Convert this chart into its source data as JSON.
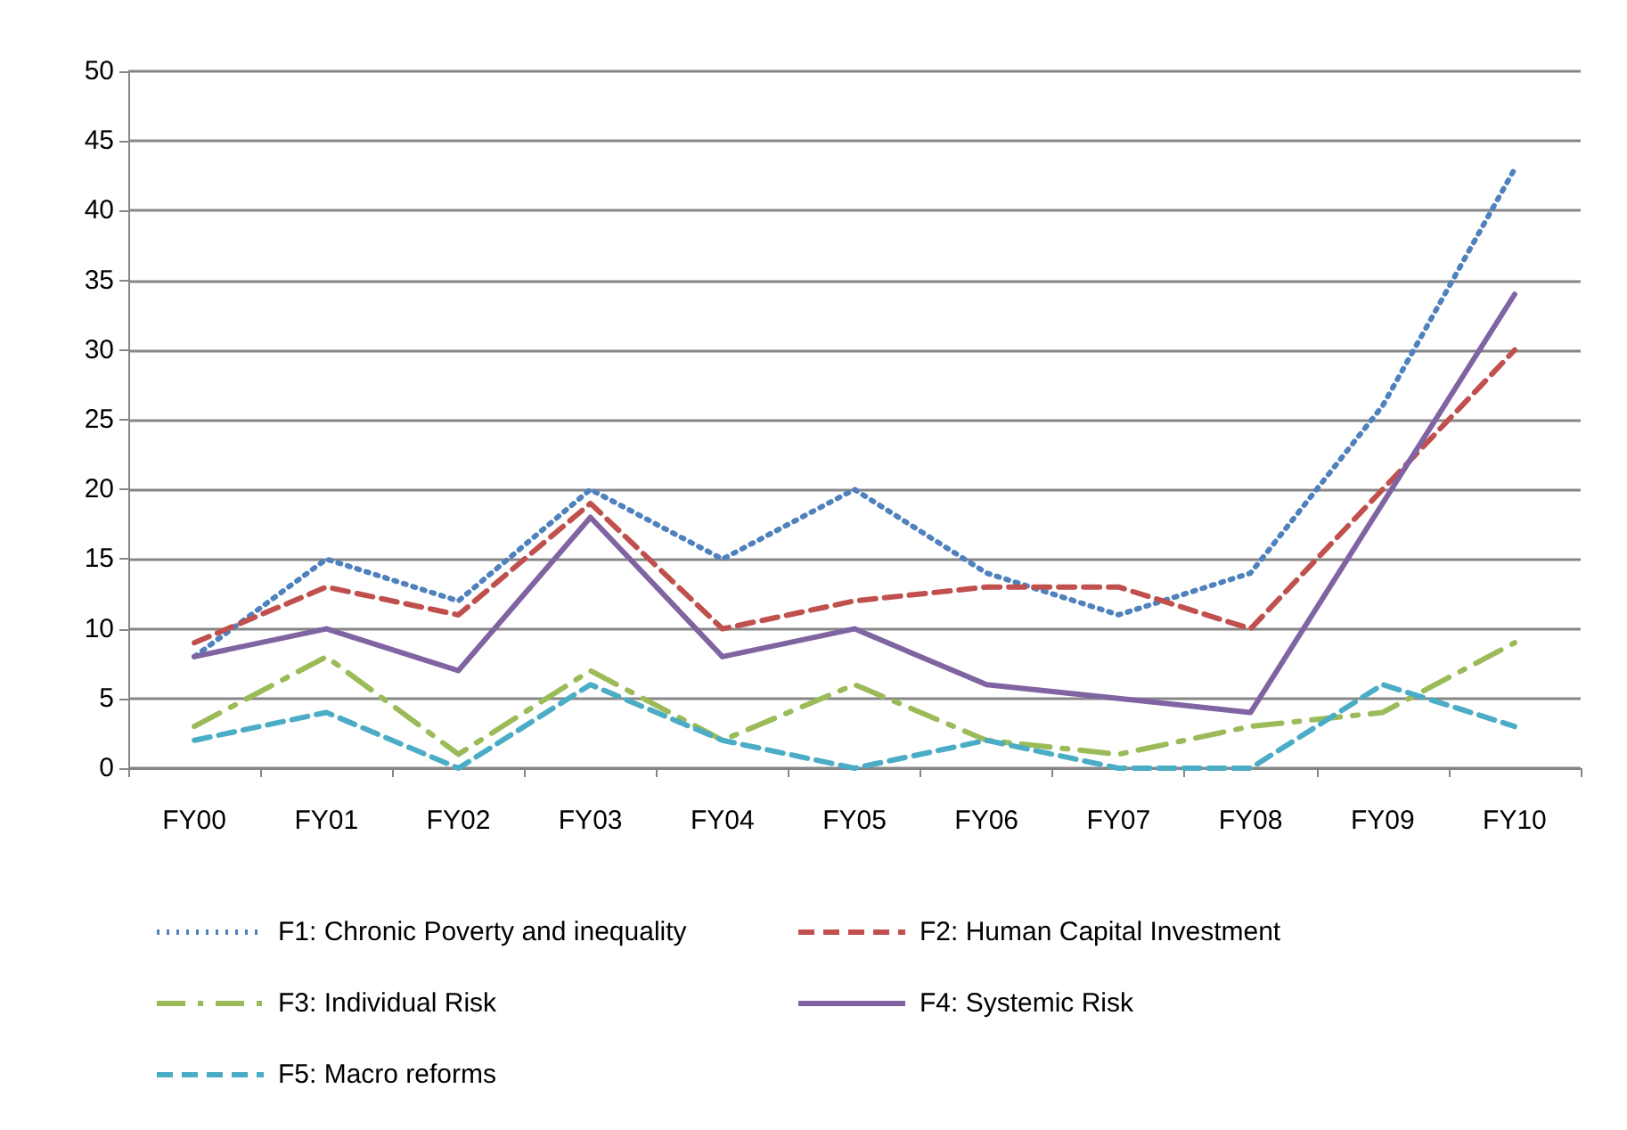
{
  "chart_data": {
    "type": "line",
    "categories": [
      "FY00",
      "FY01",
      "FY02",
      "FY03",
      "FY04",
      "FY05",
      "FY06",
      "FY07",
      "FY08",
      "FY09",
      "FY10"
    ],
    "series": [
      {
        "name": "F1: Chronic Poverty and inequality",
        "color": "#4f81bd",
        "line_style": "dotted",
        "values": [
          8,
          15,
          12,
          20,
          15,
          20,
          14,
          11,
          14,
          26,
          43
        ]
      },
      {
        "name": "F2: Human Capital Investment",
        "color": "#c0504d",
        "line_style": "dashed",
        "values": [
          9,
          13,
          11,
          19,
          10,
          12,
          13,
          13,
          10,
          20,
          30
        ]
      },
      {
        "name": "F3: Individual Risk",
        "color": "#9bbb59",
        "line_style": "dashdot",
        "values": [
          3,
          8,
          1,
          7,
          2,
          6,
          2,
          1,
          3,
          4,
          9
        ]
      },
      {
        "name": "F4: Systemic Risk",
        "color": "#8064a2",
        "line_style": "solid",
        "values": [
          8,
          10,
          7,
          18,
          8,
          10,
          6,
          5,
          4,
          19,
          34
        ]
      },
      {
        "name": "F5: Macro reforms",
        "color": "#4bacc6",
        "line_style": "dashed",
        "values": [
          2,
          4,
          0,
          6,
          2,
          0,
          2,
          0,
          0,
          6,
          3
        ]
      }
    ],
    "ylim": [
      0,
      50
    ],
    "yticks": [
      0,
      5,
      10,
      15,
      20,
      25,
      30,
      35,
      40,
      45,
      50
    ],
    "grid": "y",
    "legend": "bottom",
    "marker": "none"
  }
}
